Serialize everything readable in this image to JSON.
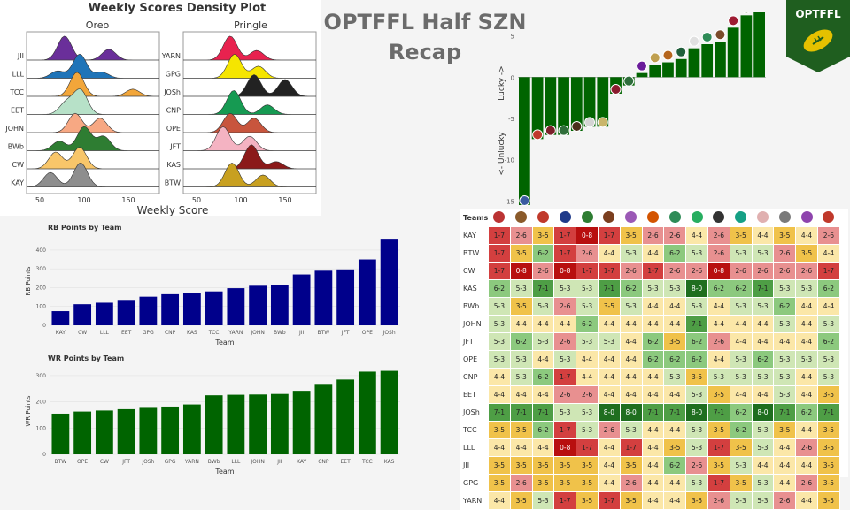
{
  "header": {
    "line1": "OPTFFL Half SZN",
    "line2": "Recap",
    "logo_text": "OPTFFL"
  },
  "colors": {
    "navy": "#00008b",
    "green": "#006400",
    "logo_bg": "#1f5e1f"
  },
  "density": {
    "title": "Weekly Scores Density Plot",
    "xlabel": "Weekly Score",
    "xticks": [
      "50",
      "100",
      "150"
    ],
    "left": {
      "title": "Oreo",
      "teams": [
        "JII",
        "LLL",
        "TCC",
        "EET",
        "JOHN",
        "BWb",
        "CW",
        "KAY"
      ]
    },
    "right": {
      "title": "Pringle",
      "teams": [
        "YARN",
        "GPG",
        "JOSh",
        "CNP",
        "OPE",
        "JFT",
        "KAS",
        "BTW"
      ]
    }
  },
  "lucky": {
    "ylabel_top": "Lucky ->",
    "ylabel_bottom": "<- Unlucky",
    "yticks": [
      "5",
      "0",
      "-5",
      "-10",
      "-15"
    ]
  },
  "matrix": {
    "header": "Teams",
    "teams": [
      "KAY",
      "BTW",
      "CW",
      "KAS",
      "BWb",
      "JOHN",
      "JFT",
      "OPE",
      "CNP",
      "EET",
      "JOSh",
      "TCC",
      "LLL",
      "JII",
      "GPG",
      "YARN"
    ],
    "rows": [
      [
        "1-7",
        "2-6",
        "3-5",
        "1-7",
        "0-8",
        "1-7",
        "3-5",
        "2-6",
        "2-6",
        "4-4",
        "2-6",
        "3-5",
        "4-4",
        "3-5",
        "4-4",
        "2-6"
      ],
      [
        "1-7",
        "3-5",
        "6-2",
        "1-7",
        "2-6",
        "4-4",
        "5-3",
        "4-4",
        "6-2",
        "5-3",
        "2-6",
        "5-3",
        "5-3",
        "2-6",
        "3-5",
        "4-4"
      ],
      [
        "1-7",
        "0-8",
        "2-6",
        "0-8",
        "1-7",
        "1-7",
        "2-6",
        "1-7",
        "2-6",
        "2-6",
        "0-8",
        "2-6",
        "2-6",
        "2-6",
        "2-6",
        "1-7"
      ],
      [
        "6-2",
        "5-3",
        "7-1",
        "5-3",
        "5-3",
        "7-1",
        "6-2",
        "5-3",
        "5-3",
        "8-0",
        "6-2",
        "6-2",
        "7-1",
        "5-3",
        "5-3",
        "6-2"
      ],
      [
        "5-3",
        "3-5",
        "5-3",
        "2-6",
        "5-3",
        "3-5",
        "5-3",
        "4-4",
        "4-4",
        "5-3",
        "4-4",
        "5-3",
        "5-3",
        "6-2",
        "4-4",
        "4-4"
      ],
      [
        "5-3",
        "4-4",
        "4-4",
        "4-4",
        "6-2",
        "4-4",
        "4-4",
        "4-4",
        "4-4",
        "7-1",
        "4-4",
        "4-4",
        "4-4",
        "5-3",
        "4-4",
        "5-3"
      ],
      [
        "5-3",
        "6-2",
        "5-3",
        "2-6",
        "5-3",
        "5-3",
        "4-4",
        "6-2",
        "3-5",
        "6-2",
        "2-6",
        "4-4",
        "4-4",
        "4-4",
        "4-4",
        "6-2"
      ],
      [
        "5-3",
        "5-3",
        "4-4",
        "5-3",
        "4-4",
        "4-4",
        "4-4",
        "6-2",
        "6-2",
        "6-2",
        "4-4",
        "5-3",
        "6-2",
        "5-3",
        "5-3",
        "5-3"
      ],
      [
        "4-4",
        "5-3",
        "6-2",
        "1-7",
        "4-4",
        "4-4",
        "4-4",
        "4-4",
        "5-3",
        "3-5",
        "5-3",
        "5-3",
        "5-3",
        "5-3",
        "4-4",
        "5-3"
      ],
      [
        "4-4",
        "4-4",
        "4-4",
        "2-6",
        "2-6",
        "4-4",
        "4-4",
        "4-4",
        "4-4",
        "5-3",
        "3-5",
        "4-4",
        "4-4",
        "5-3",
        "4-4",
        "3-5"
      ],
      [
        "7-1",
        "7-1",
        "7-1",
        "5-3",
        "5-3",
        "8-0",
        "8-0",
        "7-1",
        "7-1",
        "8-0",
        "7-1",
        "6-2",
        "8-0",
        "7-1",
        "6-2",
        "7-1"
      ],
      [
        "3-5",
        "3-5",
        "6-2",
        "1-7",
        "5-3",
        "2-6",
        "5-3",
        "4-4",
        "4-4",
        "5-3",
        "3-5",
        "6-2",
        "5-3",
        "3-5",
        "4-4",
        "3-5"
      ],
      [
        "4-4",
        "4-4",
        "4-4",
        "0-8",
        "1-7",
        "4-4",
        "1-7",
        "4-4",
        "3-5",
        "5-3",
        "1-7",
        "3-5",
        "5-3",
        "4-4",
        "2-6",
        "3-5"
      ],
      [
        "3-5",
        "3-5",
        "3-5",
        "3-5",
        "3-5",
        "4-4",
        "3-5",
        "4-4",
        "6-2",
        "2-6",
        "3-5",
        "5-3",
        "4-4",
        "4-4",
        "4-4",
        "3-5"
      ],
      [
        "3-5",
        "2-6",
        "3-5",
        "3-5",
        "3-5",
        "4-4",
        "2-6",
        "4-4",
        "4-4",
        "5-3",
        "1-7",
        "3-5",
        "5-3",
        "4-4",
        "2-6",
        "3-5"
      ],
      [
        "4-4",
        "3-5",
        "5-3",
        "1-7",
        "3-5",
        "1-7",
        "3-5",
        "4-4",
        "4-4",
        "3-5",
        "2-6",
        "5-3",
        "5-3",
        "2-6",
        "4-4",
        "3-5"
      ]
    ]
  },
  "chart_data": [
    {
      "type": "area",
      "title": "Weekly Scores Density Plot",
      "panels": [
        "Oreo",
        "Pringle"
      ],
      "xlabel": "Weekly Score",
      "xlim": [
        35,
        185
      ],
      "series": [
        {
          "name": "JII",
          "panel": "Oreo",
          "color": "#6a2f9a",
          "peaks": [
            [
              78,
              1.0
            ],
            [
              128,
              0.45
            ]
          ]
        },
        {
          "name": "LLL",
          "panel": "Oreo",
          "color": "#1f74b8",
          "peaks": [
            [
              95,
              1.0
            ],
            [
              70,
              0.3
            ],
            [
              120,
              0.25
            ]
          ]
        },
        {
          "name": "TCC",
          "panel": "Oreo",
          "color": "#f2a63a",
          "peaks": [
            [
              92,
              1.0
            ],
            [
              155,
              0.3
            ]
          ]
        },
        {
          "name": "EET",
          "panel": "Oreo",
          "color": "#b7e1c8",
          "peaks": [
            [
              96,
              1.0
            ],
            [
              80,
              0.5
            ]
          ]
        },
        {
          "name": "JOHN",
          "panel": "Oreo",
          "color": "#f7a883",
          "peaks": [
            [
              90,
              0.8
            ],
            [
              118,
              0.6
            ]
          ]
        },
        {
          "name": "BWb",
          "panel": "Oreo",
          "color": "#2e7d32",
          "peaks": [
            [
              100,
              1.0
            ],
            [
              72,
              0.4
            ],
            [
              122,
              0.6
            ]
          ]
        },
        {
          "name": "CW",
          "panel": "Oreo",
          "color": "#f8c66a",
          "peaks": [
            [
              68,
              0.7
            ],
            [
              95,
              0.9
            ]
          ]
        },
        {
          "name": "KAY",
          "panel": "Oreo",
          "color": "#8e8e8e",
          "peaks": [
            [
              62,
              0.6
            ],
            [
              96,
              1.0
            ]
          ]
        },
        {
          "name": "YARN",
          "panel": "Pringle",
          "color": "#e8224f",
          "peaks": [
            [
              88,
              1.0
            ],
            [
              118,
              0.4
            ]
          ]
        },
        {
          "name": "GPG",
          "panel": "Pringle",
          "color": "#f5e500",
          "peaks": [
            [
              93,
              1.0
            ],
            [
              120,
              0.5
            ]
          ]
        },
        {
          "name": "JOSh",
          "panel": "Pringle",
          "color": "#222222",
          "peaks": [
            [
              115,
              0.9
            ],
            [
              150,
              0.7
            ]
          ]
        },
        {
          "name": "CNP",
          "panel": "Pringle",
          "color": "#169a52",
          "peaks": [
            [
              92,
              1.0
            ],
            [
              130,
              0.4
            ]
          ]
        },
        {
          "name": "OPE",
          "panel": "Pringle",
          "color": "#c8553d",
          "peaks": [
            [
              88,
              0.8
            ],
            [
              115,
              0.6
            ]
          ]
        },
        {
          "name": "JFT",
          "panel": "Pringle",
          "color": "#f4b3c2",
          "peaks": [
            [
              80,
              1.0
            ],
            [
              110,
              0.6
            ]
          ]
        },
        {
          "name": "KAS",
          "panel": "Pringle",
          "color": "#8b1a1a",
          "peaks": [
            [
              112,
              1.0
            ],
            [
              140,
              0.3
            ]
          ]
        },
        {
          "name": "BTW",
          "panel": "Pringle",
          "color": "#c8a020",
          "peaks": [
            [
              90,
              1.0
            ],
            [
              125,
              0.5
            ]
          ]
        }
      ]
    },
    {
      "type": "bar",
      "title": "RB Points by Team",
      "xlabel": "Team",
      "ylabel": "RB Points",
      "ylim": [
        0,
        470
      ],
      "yticks": [
        0,
        100,
        200,
        300,
        400
      ],
      "categories": [
        "KAY",
        "CW",
        "LLL",
        "EET",
        "GPG",
        "CNP",
        "KAS",
        "TCC",
        "YARN",
        "JOHN",
        "BWb",
        "JII",
        "BTW",
        "JFT",
        "OPE",
        "JOSh"
      ],
      "values": [
        75,
        112,
        120,
        135,
        152,
        165,
        172,
        180,
        197,
        210,
        215,
        270,
        290,
        297,
        350,
        460
      ],
      "color": "#00008b"
    },
    {
      "type": "bar",
      "title": "WR Points by Team",
      "xlabel": "Team",
      "ylabel": "WR Points",
      "ylim": [
        0,
        330
      ],
      "yticks": [
        0,
        100,
        200,
        300
      ],
      "categories": [
        "BTW",
        "OPE",
        "CW",
        "JFT",
        "JOSh",
        "GPG",
        "YARN",
        "BWb",
        "LLL",
        "JOHN",
        "JII",
        "KAY",
        "CNP",
        "EET",
        "TCC",
        "KAS"
      ],
      "values": [
        155,
        163,
        167,
        172,
        177,
        182,
        190,
        225,
        227,
        228,
        230,
        242,
        265,
        285,
        315,
        318
      ],
      "color": "#006400"
    },
    {
      "type": "bar",
      "title": "",
      "ylabel": "Lucky -> / <- Unlucky",
      "ylim": [
        -15.5,
        7
      ],
      "yticks": [
        5,
        0,
        -5,
        -10,
        -15
      ],
      "values": [
        -15.5,
        -7.5,
        -7,
        -7,
        -6.5,
        -6,
        -6,
        -2,
        -1,
        0.5,
        1.5,
        1.8,
        2.2,
        3.5,
        4,
        4.3,
        6,
        7.5,
        9
      ],
      "color": "#006400"
    }
  ]
}
